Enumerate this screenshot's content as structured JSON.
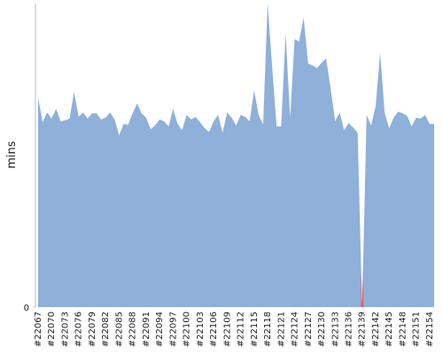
{
  "chart_data": {
    "type": "area",
    "y_label": "mins",
    "categories": [
      "#22067",
      null,
      null,
      "#22070",
      null,
      null,
      "#22073",
      null,
      null,
      "#22076",
      null,
      null,
      "#22079",
      null,
      null,
      "#22082",
      null,
      null,
      "#22085",
      null,
      null,
      "#22088",
      null,
      null,
      "#22091",
      null,
      null,
      "#22094",
      null,
      null,
      "#22097",
      null,
      null,
      "#22100",
      null,
      null,
      "#22103",
      null,
      null,
      "#22106",
      null,
      null,
      "#22109",
      null,
      null,
      "#22112",
      null,
      null,
      "#22115",
      null,
      null,
      "#22118",
      null,
      null,
      "#22121",
      null,
      null,
      "#22124",
      null,
      null,
      "#22127",
      null,
      null,
      "#22130",
      null,
      null,
      "#22133",
      null,
      null,
      "#22136",
      null,
      null,
      "#22139",
      null,
      null,
      "#22142",
      null,
      null,
      "#22145",
      null,
      null,
      "#22148",
      null,
      null,
      "#22151",
      null,
      null,
      "#22154",
      null
    ],
    "series": [
      {
        "color": "#8eb0d9",
        "values": [
          69.1,
          60.9,
          64.1,
          62.1,
          65.3,
          61.2,
          61.5,
          62.1,
          70.8,
          62.7,
          64.1,
          62.1,
          63.8,
          63.8,
          61.8,
          62.4,
          64.1,
          61.8,
          56.6,
          60.3,
          60.1,
          63.8,
          67.1,
          63.8,
          62.4,
          58.6,
          59.8,
          61.8,
          61.2,
          59.5,
          65.3,
          60.3,
          58.3,
          63.3,
          61.8,
          62.7,
          60.9,
          58.9,
          57.7,
          61.2,
          63.3,
          57.4,
          64.1,
          62.4,
          59.8,
          63.3,
          62.7,
          61.2,
          71.4,
          63.3,
          60.1,
          100,
          79.3,
          59.5,
          59.5,
          90.1,
          62.4,
          88.3,
          87.5,
          95.3,
          80.2,
          79.6,
          78.7,
          80.5,
          81.9,
          72.0,
          61.2,
          64.1,
          58.3,
          60.6,
          59.2,
          57.4,
          0,
          63.3,
          59.8,
          66.2,
          83.7,
          64.1,
          58.9,
          62.4,
          64.4,
          63.8,
          63.0,
          59.5,
          62.4,
          62.1,
          63.3,
          60.3,
          60.3
        ]
      }
    ],
    "highlight": {
      "index": 72,
      "color": "#ff3b3b"
    },
    "ylim": [
      0,
      100
    ],
    "yticks": [
      0
    ]
  }
}
